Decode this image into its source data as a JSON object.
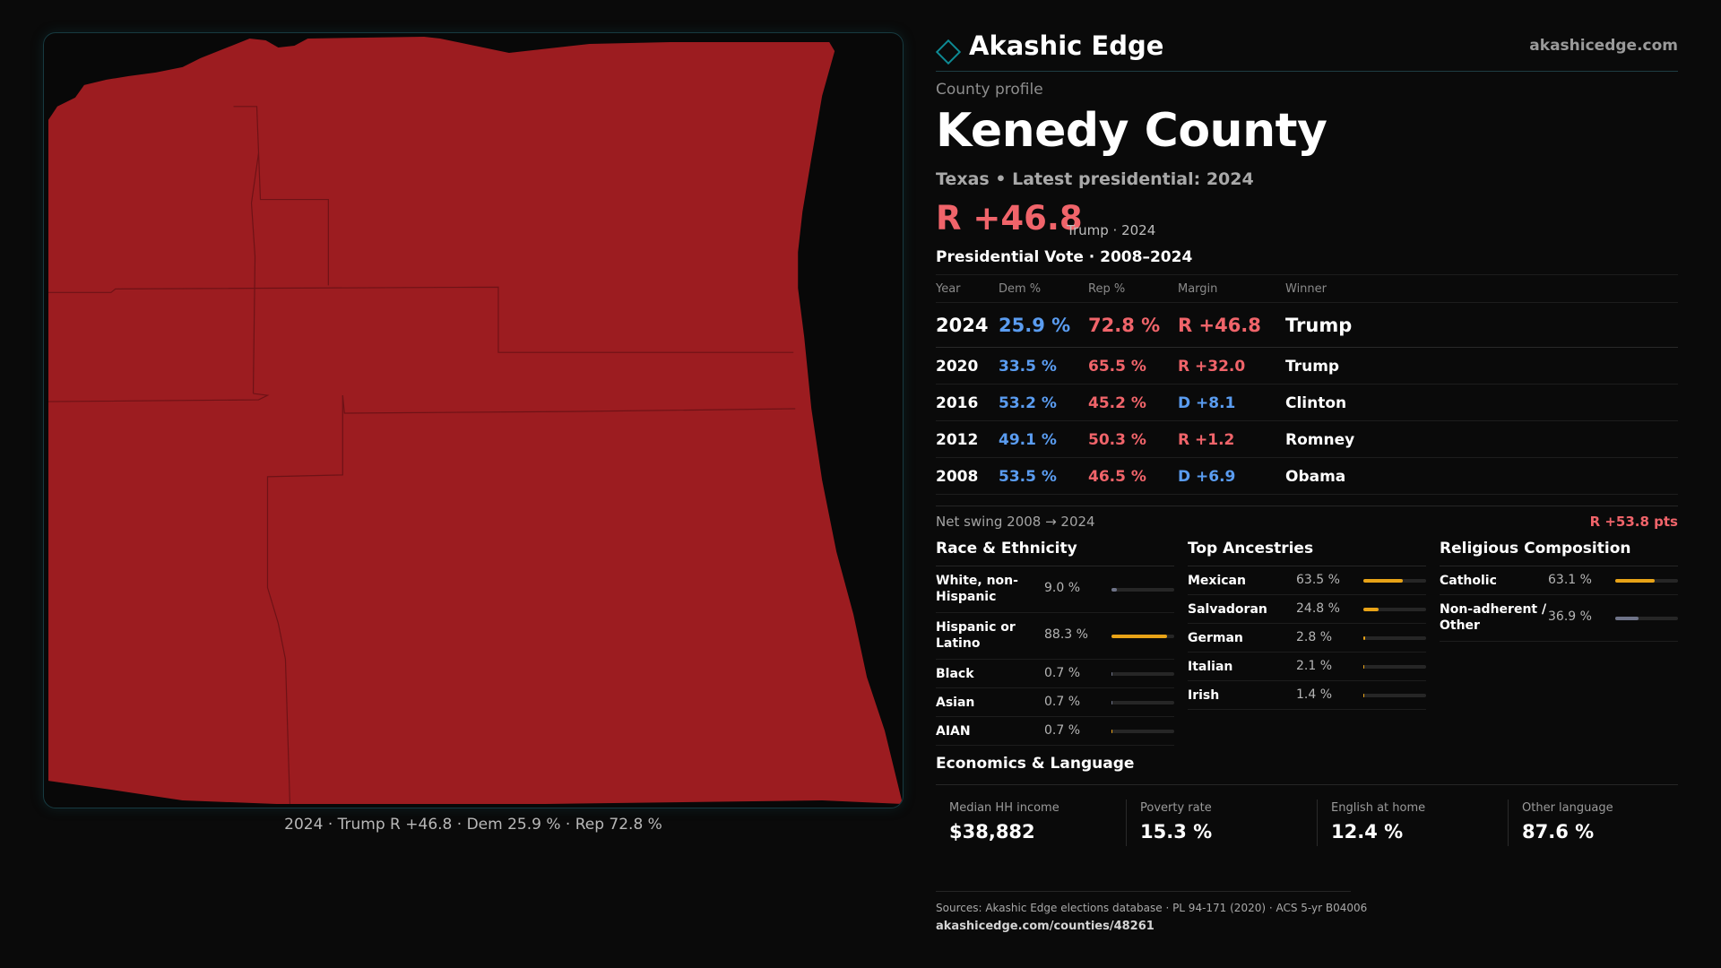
{
  "colors": {
    "republican": "#f0646a",
    "democrat": "#5a9cf0",
    "map_fill": "#9c1c20",
    "map_lines": "#6e1216",
    "accent": "#0e8a94",
    "bar_highlight": "#e8a317",
    "bar_muted": "#6e7388"
  },
  "map": {
    "caption": "2024 · Trump R +46.8 · Dem 25.9 % · Rep 72.8 %",
    "fill_level": "R +46.8"
  },
  "brand": {
    "logo_icon": "diamond-logo-icon",
    "name": "Akashic Edge",
    "url": "akashicedge.com"
  },
  "profile": {
    "kicker": "County profile",
    "county": "Kenedy County",
    "subtitle": "Texas • Latest presidential: 2024",
    "headline_margin": "R +46.8",
    "headline_note": "Trump · 2024"
  },
  "votes": {
    "title": "Presidential Vote · 2008–2024",
    "headers": {
      "year": "Year",
      "dem": "Dem %",
      "rep": "Rep %",
      "margin": "Margin",
      "winner": "Winner"
    },
    "rows": [
      {
        "year": "2024",
        "dem": "25.9 %",
        "rep": "72.8 %",
        "margin": "R +46.8",
        "party": "r",
        "winner": "Trump"
      },
      {
        "year": "2020",
        "dem": "33.5 %",
        "rep": "65.5 %",
        "margin": "R +32.0",
        "party": "r",
        "winner": "Trump"
      },
      {
        "year": "2016",
        "dem": "53.2 %",
        "rep": "45.2 %",
        "margin": "D +8.1",
        "party": "d",
        "winner": "Clinton"
      },
      {
        "year": "2012",
        "dem": "49.1 %",
        "rep": "50.3 %",
        "margin": "R +1.2",
        "party": "r",
        "winner": "Romney"
      },
      {
        "year": "2008",
        "dem": "53.5 %",
        "rep": "46.5 %",
        "margin": "D +6.9",
        "party": "d",
        "winner": "Obama"
      }
    ],
    "swing_label": "Net swing 2008 → 2024",
    "swing_value": "R +53.8 pts"
  },
  "race": {
    "title": "Race & Ethnicity",
    "rows": [
      {
        "label": "White, non-Hispanic",
        "value": "9.0 %",
        "fraction": 0.09,
        "tone": "muted"
      },
      {
        "label": "Hispanic or Latino",
        "value": "88.3 %",
        "fraction": 0.883,
        "tone": "highlight"
      },
      {
        "label": "Black",
        "value": "0.7 %",
        "fraction": 0.007,
        "tone": "muted"
      },
      {
        "label": "Asian",
        "value": "0.7 %",
        "fraction": 0.007,
        "tone": "muted"
      },
      {
        "label": "AIAN",
        "value": "0.7 %",
        "fraction": 0.007,
        "tone": "highlight"
      }
    ]
  },
  "ancestry": {
    "title": "Top Ancestries",
    "rows": [
      {
        "label": "Mexican",
        "value": "63.5 %",
        "fraction": 0.635,
        "tone": "highlight"
      },
      {
        "label": "Salvadoran",
        "value": "24.8 %",
        "fraction": 0.248,
        "tone": "highlight"
      },
      {
        "label": "German",
        "value": "2.8 %",
        "fraction": 0.028,
        "tone": "highlight"
      },
      {
        "label": "Italian",
        "value": "2.1 %",
        "fraction": 0.021,
        "tone": "highlight"
      },
      {
        "label": "Irish",
        "value": "1.4 %",
        "fraction": 0.014,
        "tone": "highlight"
      }
    ]
  },
  "religion": {
    "title": "Religious Composition",
    "rows": [
      {
        "label": "Catholic",
        "value": "63.1 %",
        "fraction": 0.631,
        "tone": "highlight"
      },
      {
        "label": "Non-adherent / Other",
        "value": "36.9 %",
        "fraction": 0.369,
        "tone": "muted"
      }
    ]
  },
  "economics": {
    "title": "Economics & Language",
    "stats": [
      {
        "label": "Median HH income",
        "value": "$38,882"
      },
      {
        "label": "Poverty rate",
        "value": "15.3 %"
      },
      {
        "label": "English at home",
        "value": "12.4 %"
      },
      {
        "label": "Other language",
        "value": "87.6 %"
      }
    ]
  },
  "sources": {
    "line": "Sources: Akashic Edge elections database · PL 94-171 (2020) · ACS 5-yr B04006",
    "url": "akashicedge.com/counties/48261"
  }
}
